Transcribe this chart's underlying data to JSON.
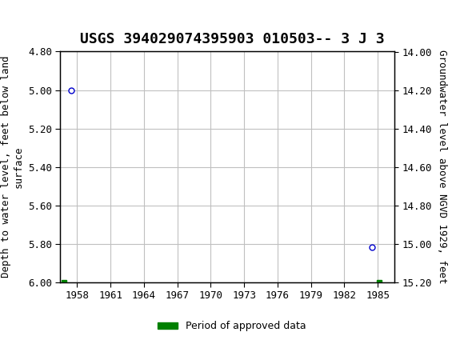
{
  "title": "USGS 394029074395903 010503-- 3 J 3",
  "ylabel_left": "Depth to water level, feet below land\nsurface",
  "ylabel_right": "Groundwater level above NGVD 1929, feet",
  "ylim_left": [
    4.8,
    6.0
  ],
  "ylim_right": [
    14.0,
    15.2
  ],
  "xlim": [
    1956.5,
    1986.5
  ],
  "xticks": [
    1958,
    1961,
    1964,
    1967,
    1970,
    1973,
    1976,
    1979,
    1982,
    1985
  ],
  "yticks_left": [
    4.8,
    5.0,
    5.2,
    5.4,
    5.6,
    5.8,
    6.0
  ],
  "yticks_right": [
    14.0,
    14.2,
    14.4,
    14.6,
    14.8,
    15.0,
    15.2
  ],
  "data_points_x": [
    1957.5,
    1984.5
  ],
  "data_points_y": [
    5.0,
    5.82
  ],
  "point_color": "#0000cc",
  "green_bar_x1": 1956.8,
  "green_bar_x2": 1985.1,
  "green_bar_y": 6.0,
  "green_color": "#008000",
  "grid_color": "#c0c0c0",
  "background_color": "#ffffff",
  "header_color": "#1a6b3c",
  "title_fontsize": 13,
  "axis_label_fontsize": 9,
  "tick_fontsize": 9,
  "legend_label": "Period of approved data"
}
